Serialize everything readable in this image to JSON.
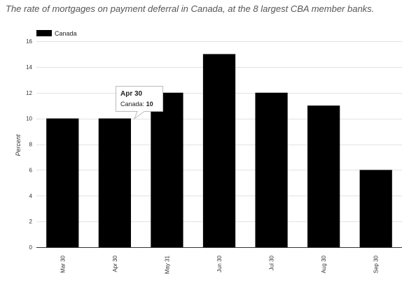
{
  "chart_data": {
    "type": "bar",
    "title": "The rate of mortgages on payment deferral in Canada, at the 8 largest CBA member banks.",
    "ylabel": "Percent",
    "xlabel": "",
    "categories": [
      "Mar 30",
      "Apr 30",
      "May 31",
      "Jun 30",
      "Jul 30",
      "Aug 30",
      "Sep 30"
    ],
    "series": [
      {
        "name": "Canada",
        "values": [
          10,
          10,
          12,
          15,
          12,
          11,
          6
        ]
      }
    ],
    "ylim": [
      0,
      16
    ],
    "yticks": [
      0,
      2,
      4,
      6,
      8,
      10,
      12,
      14,
      16
    ],
    "grid": true,
    "legend_position": "top-left",
    "bar_color": "#000000",
    "tooltip": {
      "title": "Apr 30",
      "series": "Canada",
      "separator": ":",
      "value": "10"
    }
  }
}
